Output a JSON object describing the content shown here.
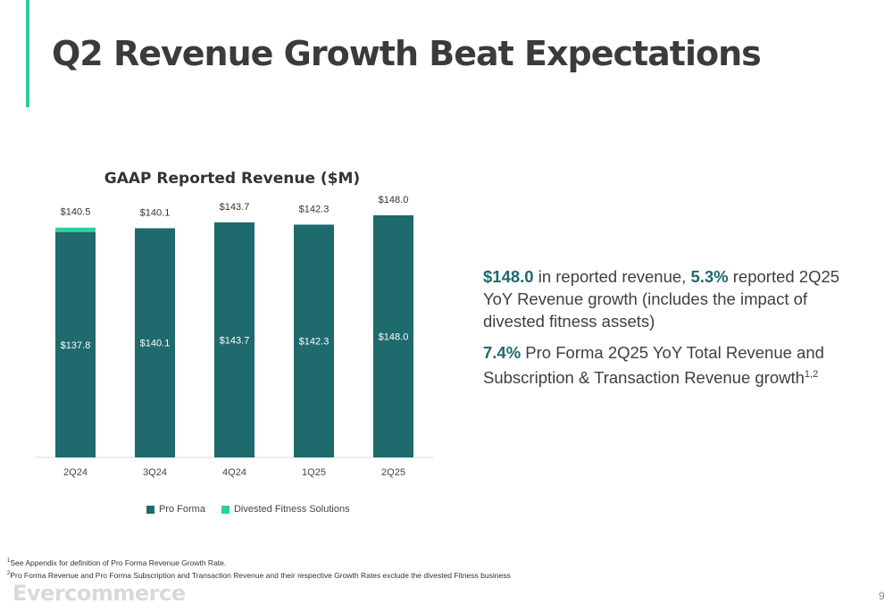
{
  "slide": {
    "title": "Q2 Revenue Growth Beat Expectations",
    "page_number": "9",
    "logo_text": "Evercommerce"
  },
  "colors": {
    "accent": "#2ccf9d",
    "pro_forma": "#1f6a6d",
    "divested": "#2ccf9d"
  },
  "chart_data": {
    "type": "bar",
    "stacked": true,
    "title": "GAAP Reported Revenue ($M)",
    "categories": [
      "2Q24",
      "3Q24",
      "4Q24",
      "1Q25",
      "2Q25"
    ],
    "series": [
      {
        "name": "Pro Forma",
        "values": [
          137.8,
          140.1,
          143.7,
          142.3,
          148.0
        ],
        "labels": [
          "$137.8",
          "$140.1",
          "$143.7",
          "$142.3",
          "$148.0"
        ]
      },
      {
        "name": "Divested Fitness Solutions",
        "values": [
          2.7,
          0,
          0,
          0,
          0
        ]
      }
    ],
    "totals": [
      140.5,
      140.1,
      143.7,
      142.3,
      148.0
    ],
    "total_labels": [
      "$140.5",
      "$140.1",
      "$143.7",
      "$142.3",
      "$148.0"
    ],
    "ylim": [
      0,
      148
    ],
    "legend_position": "bottom"
  },
  "callouts": [
    {
      "highlight1": "$148.0",
      "text1": " in reported revenue, ",
      "highlight2": "5.3%",
      "text2": " reported 2Q25 YoY Revenue growth (includes the impact of divested fitness assets)"
    },
    {
      "highlight1": "7.4%",
      "text1": " Pro Forma 2Q25 YoY Total Revenue and Subscription & Transaction Revenue  growth",
      "sup": "1,2"
    }
  ],
  "footnotes": [
    {
      "sup": "1",
      "text": "See Appendix for definition of Pro Forma Revenue Growth Rate."
    },
    {
      "sup": "2",
      "text": "Pro Forma Revenue and Pro Forma Subscription and Transaction Revenue and their respective Growth Rates exclude the divested Fitness business"
    }
  ]
}
